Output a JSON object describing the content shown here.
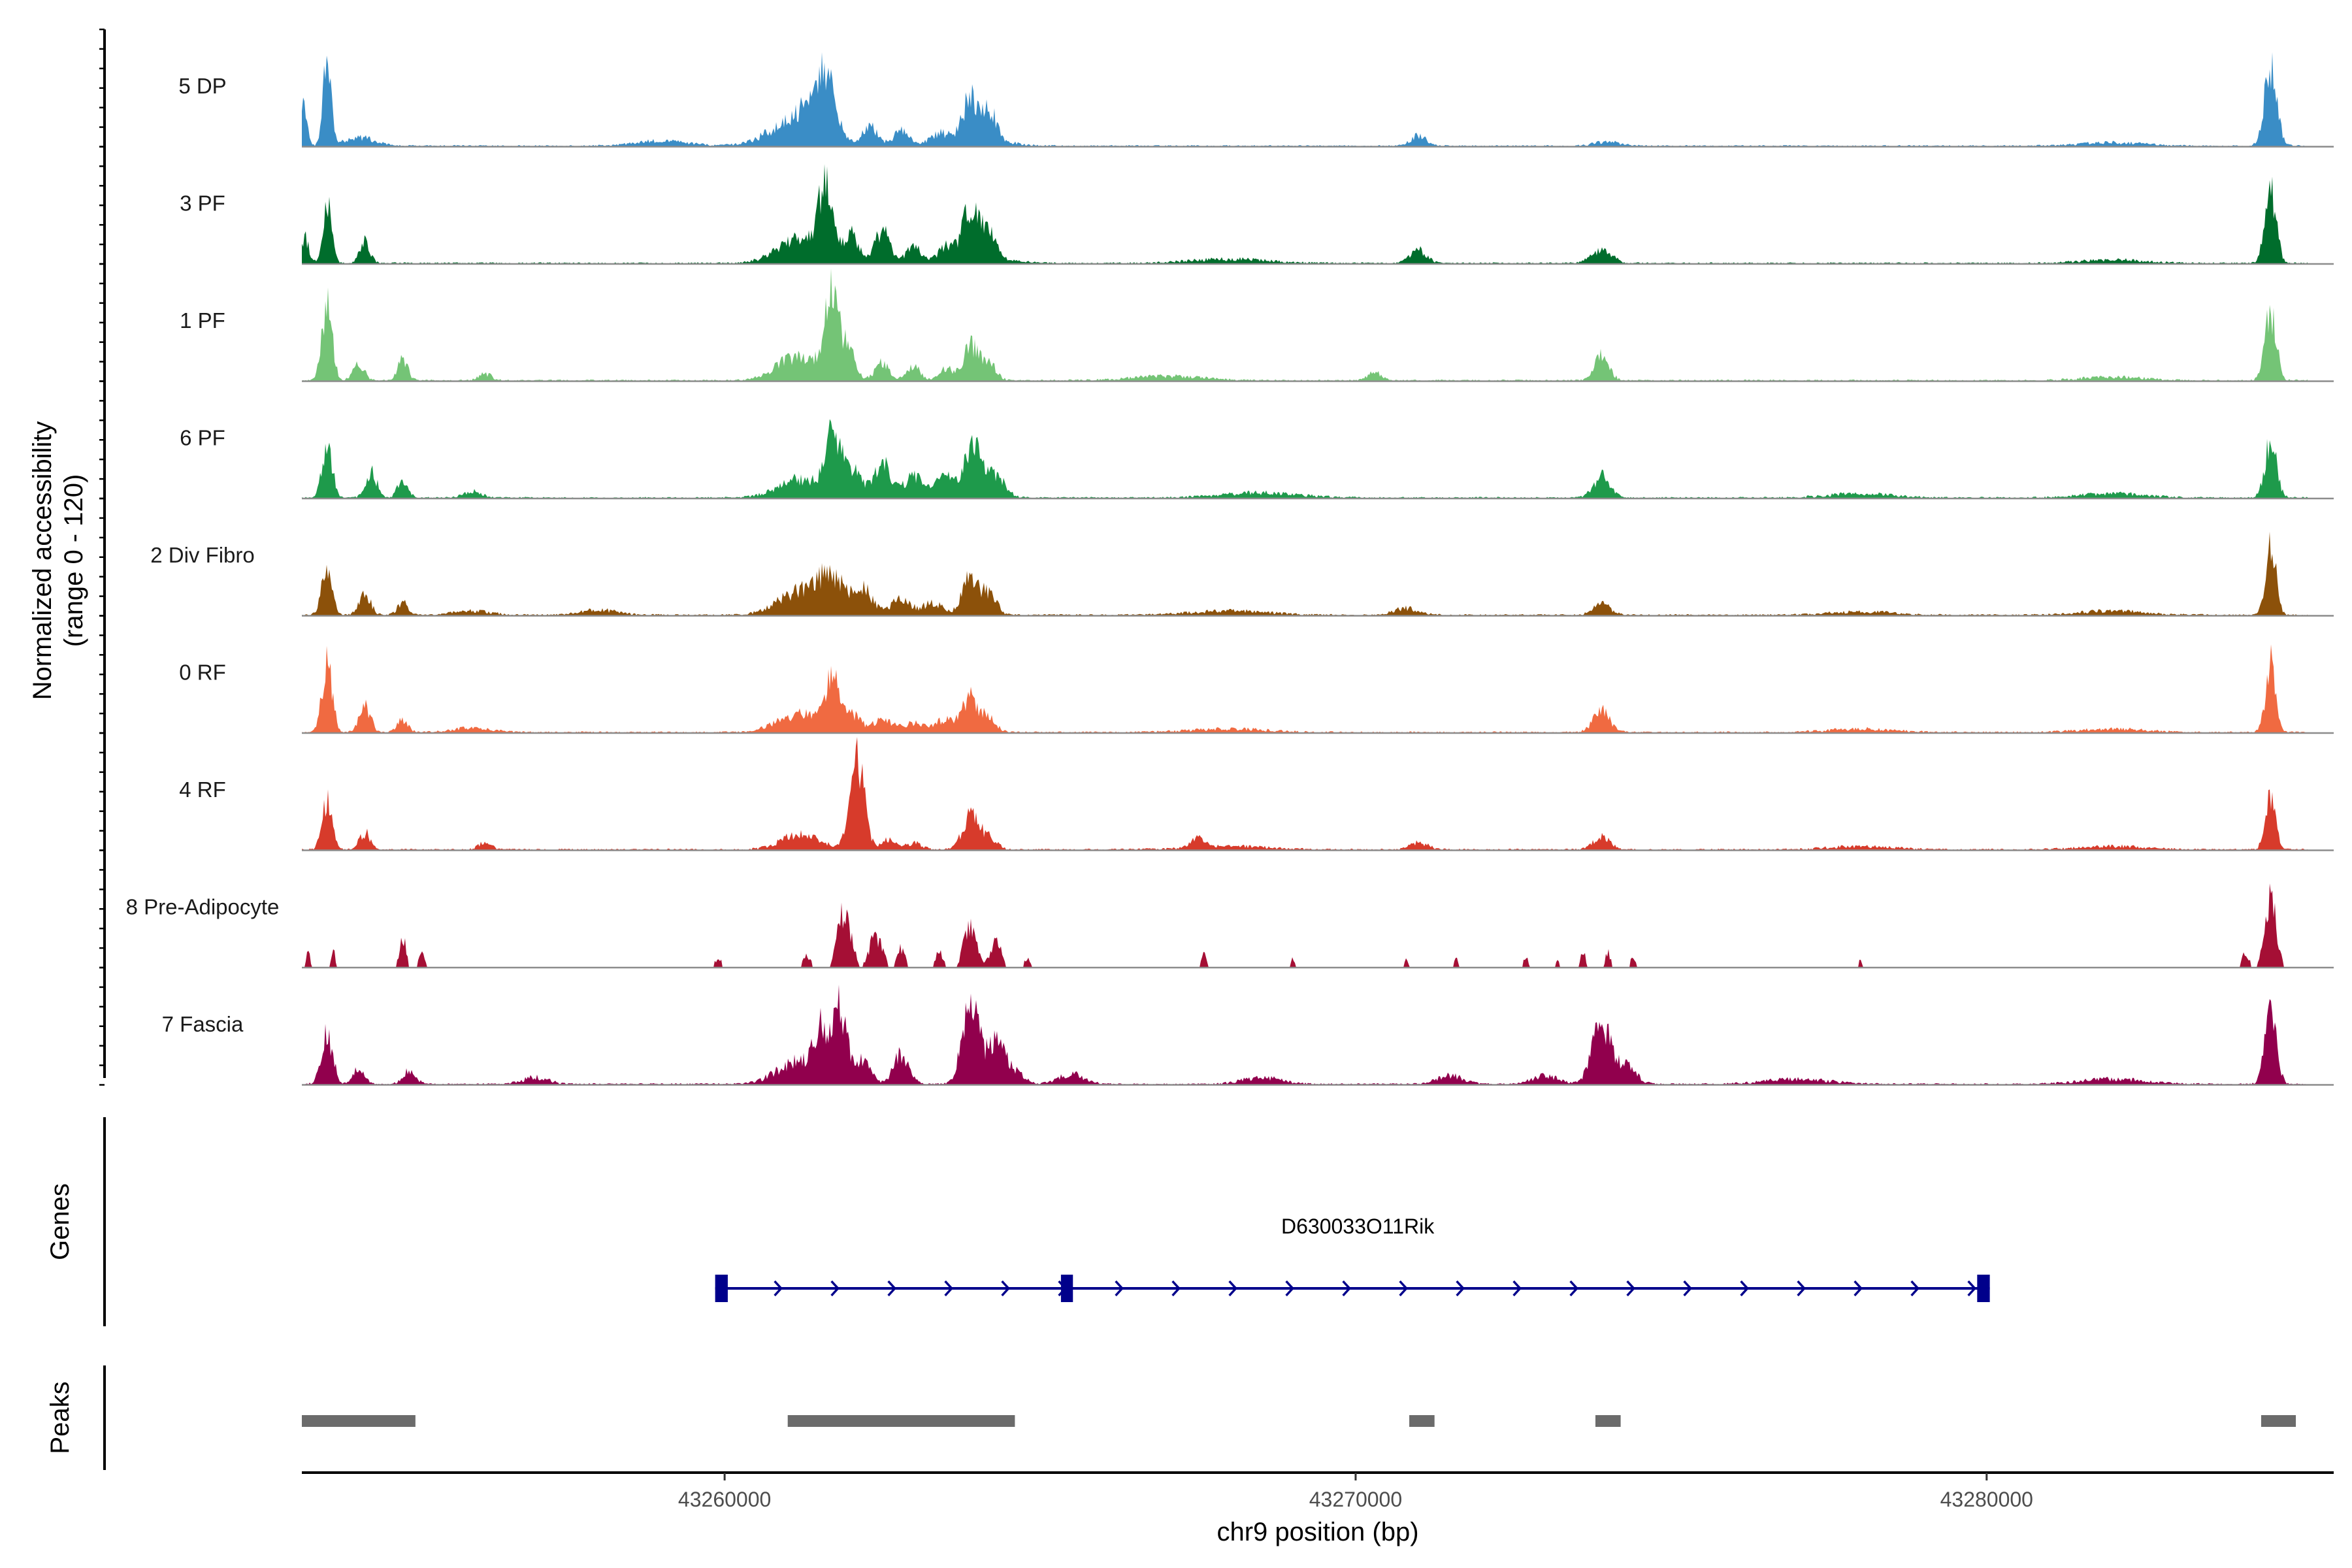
{
  "chart_data": {
    "type": "area",
    "title": "",
    "xlabel": "chr9 position (bp)",
    "ylabel_line1": "Normalized accessibility",
    "ylabel_line2": "(range 0 - 120)",
    "y_range": [
      0,
      120
    ],
    "region": [
      43253300,
      43285500
    ],
    "x_ticks": [
      43260000,
      43270000,
      43280000
    ],
    "x_tick_labels": [
      "43260000",
      "43270000",
      "43280000"
    ],
    "groups": [
      {
        "name": "5 DP",
        "color": "#3A8DC6",
        "peaks": [
          [
            43253700,
            100,
            60
          ],
          [
            43253320,
            45,
            60
          ],
          [
            43254200,
            10,
            250
          ],
          [
            43259000,
            6,
            400
          ],
          [
            43261100,
            28,
            400
          ],
          [
            43261600,
            60,
            160
          ],
          [
            43261400,
            30,
            180
          ],
          [
            43262300,
            22,
            130
          ],
          [
            43262800,
            18,
            120
          ],
          [
            43263400,
            12,
            150
          ],
          [
            43263900,
            50,
            120
          ],
          [
            43264200,
            35,
            110
          ],
          [
            43264000,
            10,
            400
          ],
          [
            43271000,
            12,
            120
          ],
          [
            43274000,
            5,
            200
          ],
          [
            43282000,
            4,
            500
          ],
          [
            43284500,
            90,
            100
          ]
        ]
      },
      {
        "name": "3 PF",
        "color": "#006D2C",
        "peaks": [
          [
            43253700,
            70,
            70
          ],
          [
            43254300,
            25,
            80
          ],
          [
            43253350,
            30,
            60
          ],
          [
            43261200,
            30,
            350
          ],
          [
            43261600,
            90,
            100
          ],
          [
            43262000,
            35,
            120
          ],
          [
            43262500,
            40,
            110
          ],
          [
            43263000,
            18,
            130
          ],
          [
            43263500,
            15,
            110
          ],
          [
            43263900,
            55,
            130
          ],
          [
            43264200,
            30,
            100
          ],
          [
            43264000,
            10,
            400
          ],
          [
            43271000,
            15,
            130
          ],
          [
            43273900,
            15,
            160
          ],
          [
            43268000,
            5,
            600
          ],
          [
            43284500,
            85,
            90
          ],
          [
            43282000,
            4,
            500
          ]
        ]
      },
      {
        "name": "1 PF",
        "color": "#74C476",
        "peaks": [
          [
            43253700,
            88,
            80
          ],
          [
            43254200,
            20,
            90
          ],
          [
            43254900,
            24,
            80
          ],
          [
            43256200,
            8,
            100
          ],
          [
            43261200,
            30,
            350
          ],
          [
            43261700,
            95,
            100
          ],
          [
            43261950,
            35,
            110
          ],
          [
            43262500,
            20,
            120
          ],
          [
            43263000,
            18,
            100
          ],
          [
            43263500,
            15,
            110
          ],
          [
            43263900,
            40,
            130
          ],
          [
            43264200,
            18,
            110
          ],
          [
            43270300,
            10,
            100
          ],
          [
            43273900,
            35,
            110
          ],
          [
            43267000,
            5,
            600
          ],
          [
            43284500,
            80,
            90
          ],
          [
            43282000,
            4,
            500
          ]
        ]
      },
      {
        "name": "6 PF",
        "color": "#1E9A4B",
        "peaks": [
          [
            43253700,
            65,
            80
          ],
          [
            43254400,
            30,
            90
          ],
          [
            43254900,
            22,
            80
          ],
          [
            43256000,
            8,
            150
          ],
          [
            43261200,
            22,
            350
          ],
          [
            43261700,
            70,
            110
          ],
          [
            43262000,
            35,
            150
          ],
          [
            43262500,
            40,
            140
          ],
          [
            43263000,
            25,
            150
          ],
          [
            43263500,
            25,
            150
          ],
          [
            43263950,
            72,
            130
          ],
          [
            43264300,
            25,
            150
          ],
          [
            43273900,
            25,
            130
          ],
          [
            43268500,
            6,
            600
          ],
          [
            43278000,
            5,
            500
          ],
          [
            43284500,
            70,
            90
          ],
          [
            43282000,
            5,
            500
          ]
        ]
      },
      {
        "name": "2 Div Fibro",
        "color": "#8C510A",
        "peaks": [
          [
            43253700,
            60,
            80
          ],
          [
            43254300,
            25,
            90
          ],
          [
            43254900,
            16,
            80
          ],
          [
            43256000,
            5,
            300
          ],
          [
            43258000,
            6,
            300
          ],
          [
            43261200,
            28,
            350
          ],
          [
            43261700,
            40,
            200
          ],
          [
            43262200,
            30,
            150
          ],
          [
            43262800,
            20,
            150
          ],
          [
            43263300,
            15,
            150
          ],
          [
            43263900,
            45,
            130
          ],
          [
            43264200,
            25,
            110
          ],
          [
            43270800,
            8,
            200
          ],
          [
            43273900,
            14,
            130
          ],
          [
            43268000,
            5,
            600
          ],
          [
            43278000,
            4,
            500
          ],
          [
            43284500,
            90,
            80
          ],
          [
            43282000,
            5,
            500
          ]
        ]
      },
      {
        "name": "0 RF",
        "color": "#F06A41",
        "peaks": [
          [
            43253700,
            85,
            80
          ],
          [
            43254300,
            30,
            90
          ],
          [
            43254900,
            15,
            80
          ],
          [
            43256000,
            5,
            300
          ],
          [
            43261200,
            22,
            350
          ],
          [
            43261700,
            55,
            110
          ],
          [
            43262000,
            20,
            150
          ],
          [
            43262500,
            16,
            150
          ],
          [
            43263000,
            12,
            150
          ],
          [
            43263500,
            15,
            150
          ],
          [
            43263900,
            40,
            130
          ],
          [
            43264200,
            15,
            110
          ],
          [
            43273900,
            25,
            130
          ],
          [
            43268000,
            4,
            600
          ],
          [
            43278000,
            4,
            500
          ],
          [
            43284500,
            80,
            80
          ],
          [
            43282000,
            4,
            500
          ]
        ]
      },
      {
        "name": "4 RF",
        "color": "#D73B2B",
        "peaks": [
          [
            43253700,
            55,
            80
          ],
          [
            43254300,
            20,
            90
          ],
          [
            43256200,
            8,
            100
          ],
          [
            43261200,
            18,
            300
          ],
          [
            43262100,
            110,
            110
          ],
          [
            43262600,
            12,
            120
          ],
          [
            43263000,
            8,
            120
          ],
          [
            43263900,
            40,
            130
          ],
          [
            43264200,
            15,
            110
          ],
          [
            43267500,
            10,
            100
          ],
          [
            43271000,
            8,
            150
          ],
          [
            43273900,
            15,
            130
          ],
          [
            43268000,
            4,
            600
          ],
          [
            43278000,
            4,
            500
          ],
          [
            43284500,
            70,
            80
          ],
          [
            43282000,
            4,
            500
          ]
        ]
      },
      {
        "name": "8 Pre-Adipocyte",
        "color": "#A50F35",
        "spiky": true,
        "peaks": [
          [
            43253400,
            20,
            30
          ],
          [
            43253800,
            20,
            30
          ],
          [
            43254900,
            35,
            50
          ],
          [
            43255200,
            15,
            50
          ],
          [
            43259900,
            10,
            60
          ],
          [
            43261300,
            15,
            60
          ],
          [
            43261900,
            75,
            100
          ],
          [
            43262400,
            40,
            100
          ],
          [
            43262800,
            25,
            60
          ],
          [
            43263400,
            18,
            60
          ],
          [
            43263900,
            55,
            100
          ],
          [
            43264300,
            35,
            80
          ],
          [
            43264800,
            10,
            60
          ],
          [
            43267600,
            18,
            40
          ],
          [
            43269000,
            10,
            40
          ],
          [
            43270800,
            10,
            40
          ],
          [
            43271600,
            10,
            40
          ],
          [
            43272700,
            12,
            40
          ],
          [
            43273200,
            10,
            40
          ],
          [
            43273600,
            20,
            40
          ],
          [
            43274000,
            18,
            40
          ],
          [
            43274400,
            14,
            40
          ],
          [
            43278000,
            8,
            40
          ],
          [
            43284500,
            80,
            90
          ],
          [
            43284100,
            18,
            60
          ]
        ]
      },
      {
        "name": "7 Fascia",
        "color": "#91004D",
        "peaks": [
          [
            43253700,
            60,
            90
          ],
          [
            43254200,
            18,
            90
          ],
          [
            43255000,
            15,
            100
          ],
          [
            43257000,
            8,
            200
          ],
          [
            43261200,
            28,
            350
          ],
          [
            43261800,
            95,
            120
          ],
          [
            43261500,
            45,
            100
          ],
          [
            43262200,
            30,
            120
          ],
          [
            43262800,
            35,
            120
          ],
          [
            43263900,
            100,
            130
          ],
          [
            43264300,
            50,
            130
          ],
          [
            43264600,
            15,
            150
          ],
          [
            43265500,
            12,
            200
          ],
          [
            43268500,
            8,
            300
          ],
          [
            43271500,
            10,
            200
          ],
          [
            43273900,
            70,
            150
          ],
          [
            43274300,
            20,
            150
          ],
          [
            43273000,
            10,
            200
          ],
          [
            43277000,
            6,
            500
          ],
          [
            43284500,
            85,
            90
          ],
          [
            43282000,
            6,
            500
          ]
        ]
      }
    ],
    "gene": {
      "name": "D630033O11Rik",
      "strand": "+",
      "start": 43259850,
      "end": 43280050,
      "exons": [
        [
          43259850,
          43260050
        ],
        [
          43265330,
          43265520
        ],
        [
          43279850,
          43280050
        ]
      ]
    },
    "peaks_track": [
      [
        43253300,
        43255100
      ],
      [
        43261000,
        43264600
      ],
      [
        43270850,
        43271250
      ],
      [
        43273800,
        43274200
      ],
      [
        43284350,
        43284900
      ]
    ],
    "track_labels": {
      "genes": "Genes",
      "peaks": "Peaks"
    }
  }
}
